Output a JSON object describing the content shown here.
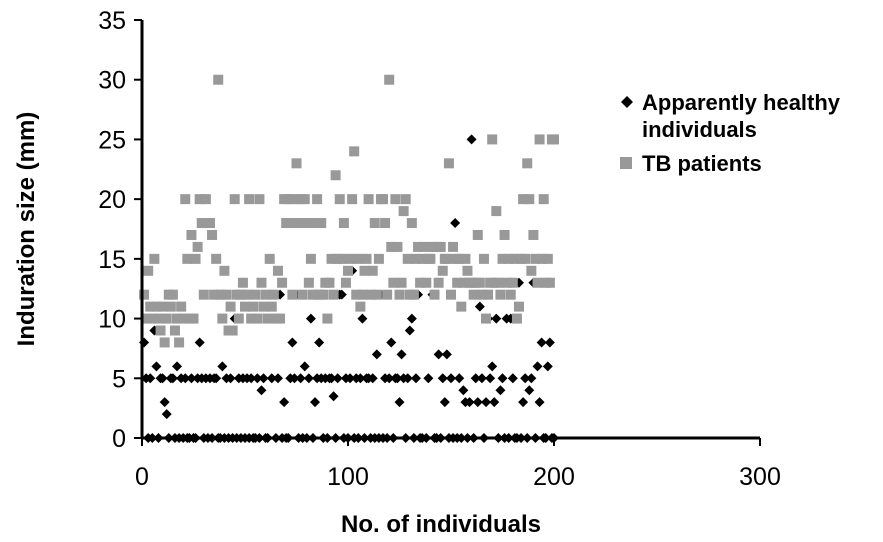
{
  "chart_data": {
    "type": "scatter",
    "title": "",
    "xlabel": "No. of individuals",
    "ylabel": "Induration size (mm)",
    "xlim": [
      0,
      300
    ],
    "ylim": [
      0,
      35
    ],
    "xticks": [
      0,
      100,
      200,
      300
    ],
    "yticks": [
      0,
      5,
      10,
      15,
      20,
      25,
      30,
      35
    ],
    "grid": false,
    "legend": "right",
    "series": [
      {
        "name": "Apparently healthy individuals",
        "marker": "diamond",
        "color": "#000000",
        "x": [
          1,
          2,
          3,
          4,
          5,
          6,
          7,
          8,
          9,
          10,
          11,
          12,
          13,
          14,
          15,
          16,
          17,
          18,
          19,
          20,
          21,
          22,
          23,
          24,
          25,
          26,
          27,
          28,
          29,
          30,
          31,
          32,
          33,
          34,
          35,
          36,
          37,
          38,
          39,
          40,
          41,
          42,
          43,
          44,
          45,
          46,
          47,
          48,
          49,
          50,
          51,
          52,
          53,
          54,
          55,
          56,
          57,
          58,
          59,
          60,
          61,
          62,
          63,
          64,
          65,
          66,
          67,
          68,
          69,
          70,
          71,
          72,
          73,
          74,
          75,
          76,
          77,
          78,
          79,
          80,
          81,
          82,
          83,
          84,
          85,
          86,
          87,
          88,
          89,
          90,
          91,
          92,
          93,
          94,
          95,
          96,
          97,
          98,
          99,
          100,
          101,
          102,
          103,
          104,
          105,
          106,
          107,
          108,
          109,
          110,
          111,
          112,
          113,
          114,
          115,
          116,
          117,
          118,
          119,
          120,
          121,
          122,
          123,
          124,
          125,
          126,
          127,
          128,
          129,
          130,
          131,
          132,
          133,
          134,
          135,
          136,
          137,
          138,
          139,
          140,
          141,
          142,
          143,
          144,
          145,
          146,
          147,
          148,
          149,
          150,
          151,
          152,
          153,
          154,
          155,
          156,
          157,
          158,
          159,
          160,
          161,
          162,
          163,
          164,
          165,
          166,
          167,
          168,
          169,
          170,
          171,
          172,
          173,
          174,
          175,
          176,
          177,
          178,
          179,
          180,
          181,
          182,
          183,
          184,
          185,
          186,
          187,
          188,
          189,
          190,
          191,
          192,
          193,
          194,
          195,
          196,
          197,
          198,
          199,
          200
        ],
        "y": [
          8,
          5,
          0,
          5,
          0,
          9,
          6,
          0,
          5,
          5,
          3,
          2,
          0,
          5,
          5,
          0,
          6,
          0,
          5,
          0,
          5,
          0,
          0,
          5,
          0,
          0,
          5,
          8,
          5,
          0,
          5,
          0,
          5,
          0,
          5,
          5,
          0,
          0,
          6,
          0,
          5,
          0,
          5,
          0,
          10,
          0,
          5,
          0,
          5,
          0,
          5,
          0,
          5,
          0,
          0,
          5,
          0,
          4,
          5,
          0,
          0,
          15,
          5,
          12,
          0,
          5,
          12,
          0,
          3,
          0,
          0,
          5,
          8,
          5,
          12,
          0,
          5,
          0,
          6,
          0,
          5,
          10,
          0,
          3,
          5,
          8,
          5,
          0,
          5,
          0,
          5,
          5,
          3.5,
          0,
          5,
          12,
          12,
          0,
          5,
          0,
          5,
          14,
          0,
          5,
          0,
          5,
          10,
          0,
          5,
          5,
          0,
          5,
          0,
          7,
          0,
          12,
          0,
          5,
          0,
          5,
          8,
          0,
          5,
          5,
          3,
          7,
          5,
          0,
          5,
          9,
          10,
          0,
          5,
          12,
          0,
          0,
          15,
          0,
          5,
          15,
          12,
          0,
          0,
          7,
          0,
          5,
          3,
          7,
          0,
          5,
          0,
          18,
          0,
          5,
          0,
          4,
          3,
          0,
          3,
          25,
          0,
          5,
          3,
          11,
          5,
          0,
          3,
          10,
          5,
          6,
          3,
          10,
          0,
          4,
          5,
          0,
          10,
          0,
          10,
          5,
          0,
          0,
          13,
          0,
          3,
          5,
          0,
          4,
          5,
          13,
          0,
          6,
          3,
          8,
          0,
          0,
          6,
          8,
          0,
          0
        ]
      },
      {
        "name": "TB patients",
        "marker": "square",
        "color": "#999999",
        "x": [
          1,
          2,
          3,
          4,
          5,
          6,
          7,
          8,
          9,
          10,
          11,
          12,
          13,
          14,
          15,
          16,
          17,
          18,
          19,
          20,
          21,
          22,
          23,
          24,
          25,
          26,
          27,
          28,
          29,
          30,
          31,
          32,
          33,
          34,
          35,
          36,
          37,
          38,
          39,
          40,
          41,
          42,
          43,
          44,
          45,
          46,
          47,
          48,
          49,
          50,
          51,
          52,
          53,
          54,
          55,
          56,
          57,
          58,
          59,
          60,
          61,
          62,
          63,
          64,
          65,
          66,
          67,
          68,
          69,
          70,
          71,
          72,
          73,
          74,
          75,
          76,
          77,
          78,
          79,
          80,
          81,
          82,
          83,
          84,
          85,
          86,
          87,
          88,
          89,
          90,
          91,
          92,
          93,
          94,
          95,
          96,
          97,
          98,
          99,
          100,
          101,
          102,
          103,
          104,
          105,
          106,
          107,
          108,
          109,
          110,
          111,
          112,
          113,
          114,
          115,
          116,
          117,
          118,
          119,
          120,
          121,
          122,
          123,
          124,
          125,
          126,
          127,
          128,
          129,
          130,
          131,
          132,
          133,
          134,
          135,
          136,
          137,
          138,
          139,
          140,
          141,
          142,
          143,
          144,
          145,
          146,
          147,
          148,
          149,
          150,
          151,
          152,
          153,
          154,
          155,
          156,
          157,
          158,
          159,
          160,
          161,
          162,
          163,
          164,
          165,
          166,
          167,
          168,
          169,
          170,
          171,
          172,
          173,
          174,
          175,
          176,
          177,
          178,
          179,
          180,
          181,
          182,
          183,
          184,
          185,
          186,
          187,
          188,
          189,
          190,
          191,
          192,
          193,
          194,
          195,
          196,
          197,
          198,
          199,
          200
        ],
        "y": [
          12,
          10,
          14,
          11,
          10,
          15,
          11,
          10,
          9,
          11,
          8,
          10,
          12,
          11,
          12,
          9,
          10,
          8,
          11,
          10,
          20,
          15,
          10,
          17,
          10,
          15,
          16,
          20,
          18,
          12,
          20,
          18,
          18,
          17,
          12,
          15,
          30,
          12,
          10,
          14,
          12,
          9,
          11,
          9,
          20,
          12,
          10,
          12,
          13,
          11,
          12,
          20,
          10,
          11,
          12,
          10,
          20,
          13,
          11,
          12,
          10,
          15,
          11,
          12,
          10,
          14,
          10,
          13,
          20,
          18,
          20,
          18,
          12,
          20,
          23,
          18,
          20,
          12,
          20,
          18,
          13,
          15,
          12,
          18,
          20,
          12,
          18,
          12,
          13,
          10,
          13,
          15,
          12,
          22,
          15,
          20,
          15,
          18,
          13,
          14,
          15,
          20,
          24,
          12,
          15,
          11,
          12,
          14,
          15,
          20,
          12,
          14,
          18,
          12,
          15,
          20,
          20,
          18,
          12,
          30,
          16,
          13,
          20,
          16,
          12,
          13,
          19,
          20,
          15,
          12,
          18,
          12,
          15,
          16,
          13,
          15,
          16,
          13,
          15,
          15,
          16,
          12,
          16,
          13,
          16,
          14,
          15,
          15,
          23,
          12,
          16,
          15,
          13,
          15,
          11,
          13,
          15,
          14,
          13,
          13,
          12,
          13,
          17,
          13,
          12,
          15,
          10,
          12,
          13,
          25,
          13,
          19,
          13,
          12,
          15,
          17,
          13,
          15,
          12,
          13,
          15,
          10,
          11,
          15,
          20,
          15,
          23,
          20,
          14,
          17,
          15,
          13,
          25,
          15,
          20,
          13,
          15,
          13,
          25,
          25
        ]
      }
    ]
  }
}
